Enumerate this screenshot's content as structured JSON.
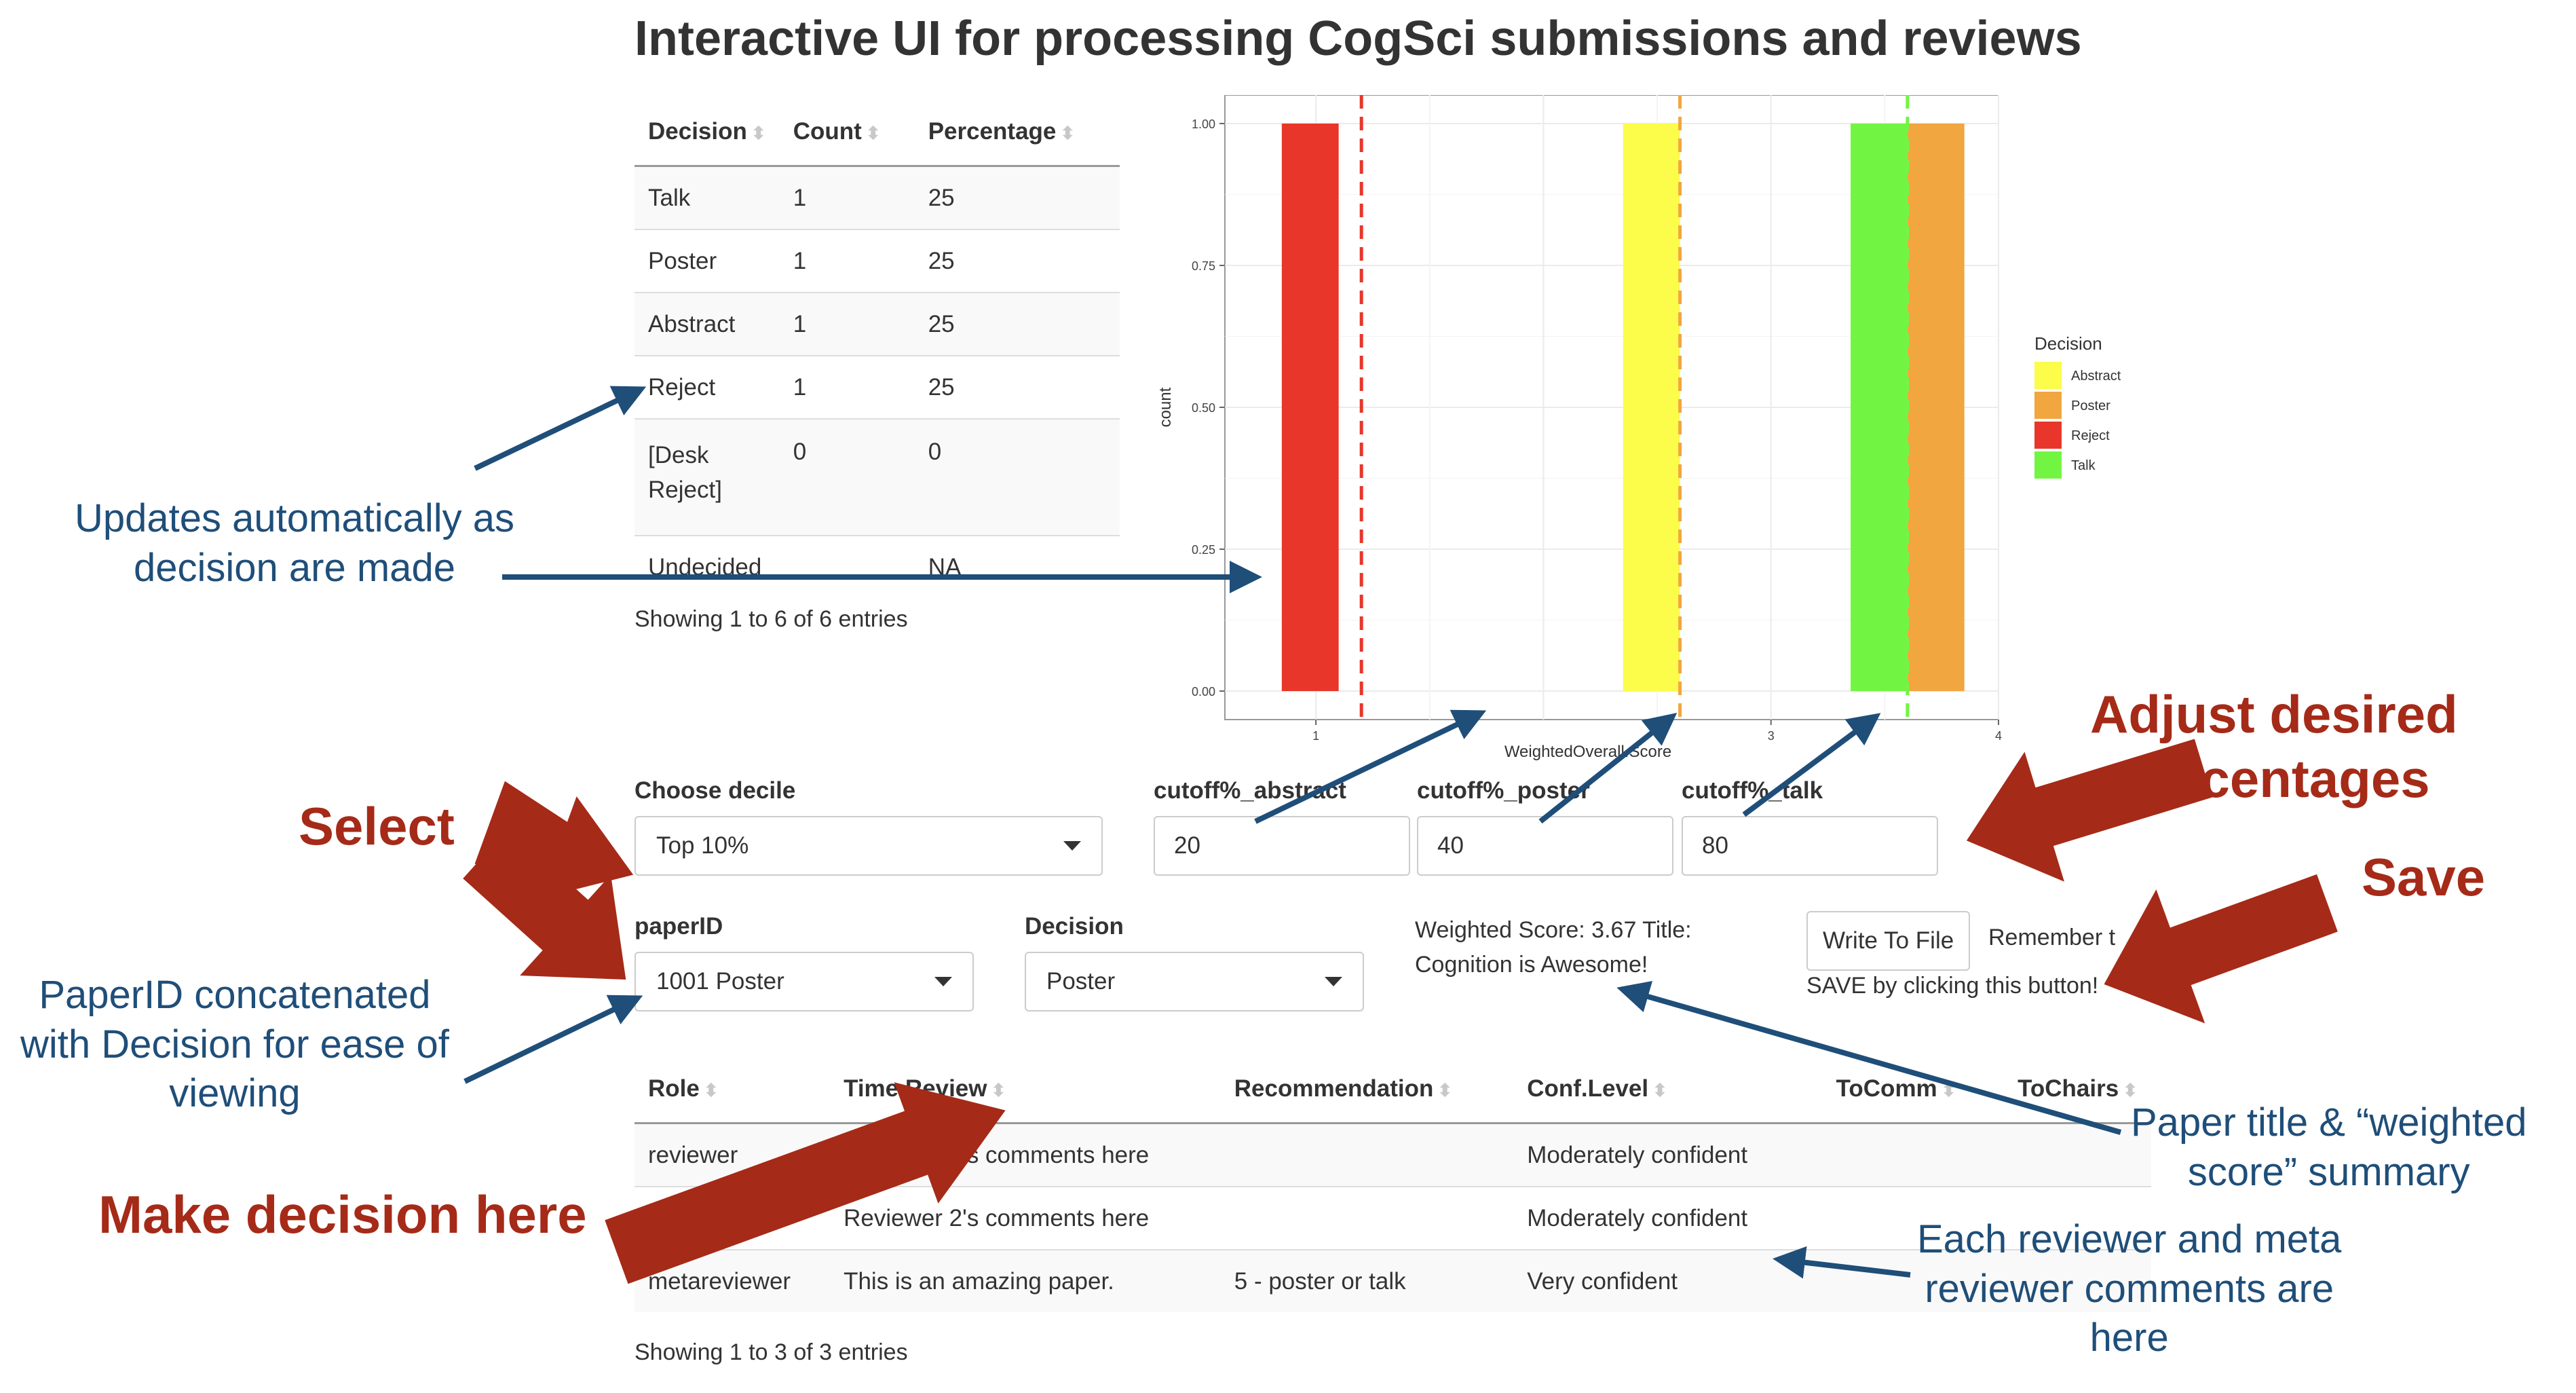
{
  "title": "Interactive UI for processing CogSci submissions and reviews",
  "decision_table": {
    "columns": [
      "Decision",
      "Count",
      "Percentage"
    ],
    "rows": [
      {
        "decision": "Talk",
        "count": "1",
        "percentage": "25"
      },
      {
        "decision": "Poster",
        "count": "1",
        "percentage": "25"
      },
      {
        "decision": "Abstract",
        "count": "1",
        "percentage": "25"
      },
      {
        "decision": "Reject",
        "count": "1",
        "percentage": "25"
      },
      {
        "decision": "[Desk Reject]",
        "count": "0",
        "percentage": "0"
      },
      {
        "decision": "Undecided",
        "count": "",
        "percentage": "NA"
      }
    ],
    "info": "Showing 1 to 6 of 6 entries"
  },
  "chart_data": {
    "type": "bar",
    "xlabel": "WeightedOverall.Score",
    "ylabel": "count",
    "xlim": [
      0.6,
      4.0
    ],
    "ylim": [
      0,
      1.0
    ],
    "x_ticks": [
      "1",
      "3",
      "4"
    ],
    "x_tick_values": [
      1,
      3,
      4
    ],
    "y_ticks": [
      "0.00",
      "0.25",
      "0.50",
      "0.75",
      "1.00"
    ],
    "y_tick_values": [
      0,
      0.25,
      0.5,
      0.75,
      1.0
    ],
    "grid": true,
    "legend": {
      "title": "Decision",
      "position": "right",
      "entries": [
        {
          "label": "Abstract",
          "color": "#fcfc4a"
        },
        {
          "label": "Poster",
          "color": "#f2a640"
        },
        {
          "label": "Reject",
          "color": "#e8362a"
        },
        {
          "label": "Talk",
          "color": "#72f542"
        }
      ]
    },
    "bars": [
      {
        "decision": "Reject",
        "x_start": 0.85,
        "x_end": 1.1,
        "count": 1,
        "color": "#e8362a"
      },
      {
        "decision": "Abstract",
        "x_start": 2.35,
        "x_end": 2.6,
        "count": 1,
        "color": "#fcfc4a"
      },
      {
        "decision": "Talk",
        "x_start": 3.35,
        "x_end": 3.6,
        "count": 1,
        "color": "#72f542"
      },
      {
        "decision": "Poster",
        "x_start": 3.6,
        "x_end": 3.85,
        "count": 1,
        "color": "#f2a640"
      }
    ],
    "cutoff_lines": [
      {
        "x": 1.2,
        "color": "#e8362a"
      },
      {
        "x": 2.6,
        "color": "#f2a640"
      },
      {
        "x": 3.6,
        "color": "#72f542"
      }
    ]
  },
  "controls": {
    "decile_label": "Choose decile",
    "decile_value": "Top 10%",
    "abstract_label": "cutoff%_abstract",
    "abstract_value": "20",
    "poster_label": "cutoff%_poster",
    "poster_value": "40",
    "talk_label": "cutoff%_talk",
    "talk_value": "80",
    "paper_label": "paperID",
    "paper_value": "1001 Poster",
    "decision_label": "Decision",
    "decision_value": "Poster",
    "summary_line1": "Weighted Score: 3.67 Title:",
    "summary_line2": "Cognition is Awesome!",
    "write_button": "Write To File",
    "remember_text": "Remember t",
    "save_note": "SAVE by clicking this button!"
  },
  "review_table": {
    "columns": [
      "Role",
      "Time.Review",
      "Recommendation",
      "Conf.Level",
      "ToComm",
      "ToChairs"
    ],
    "rows": [
      {
        "role": "reviewer",
        "review": "Reviewer 1's comments here",
        "recommendation": "",
        "conf": "Moderately confident",
        "tocomm": "",
        "tochairs": ""
      },
      {
        "role": "reviewer",
        "review": "Reviewer 2's comments here",
        "recommendation": "",
        "conf": "Moderately confident",
        "tocomm": "",
        "tochairs": ""
      },
      {
        "role": "metareviewer",
        "review": "This is an amazing paper.",
        "recommendation": "5 - poster or talk",
        "conf": "Very confident",
        "tocomm": "",
        "tochairs": ""
      }
    ],
    "info": "Showing 1 to 3 of 3 entries"
  },
  "annotations": {
    "updates": [
      "Updates automatically as",
      "decision are made"
    ],
    "paperid": [
      "PaperID concatenated",
      "with Decision for ease of",
      "viewing"
    ],
    "paper_title": [
      "Paper title & “weighted",
      "score” summary"
    ],
    "reviewers": [
      "Each reviewer and meta",
      "reviewer comments are",
      "here"
    ],
    "select": "Select",
    "adjust": [
      "Adjust desired",
      "percentages"
    ],
    "save": "Save",
    "make_decision": "Make decision here"
  },
  "colors": {
    "annotation_blue": "#1f4e79",
    "annotation_red": "#a52a18"
  }
}
